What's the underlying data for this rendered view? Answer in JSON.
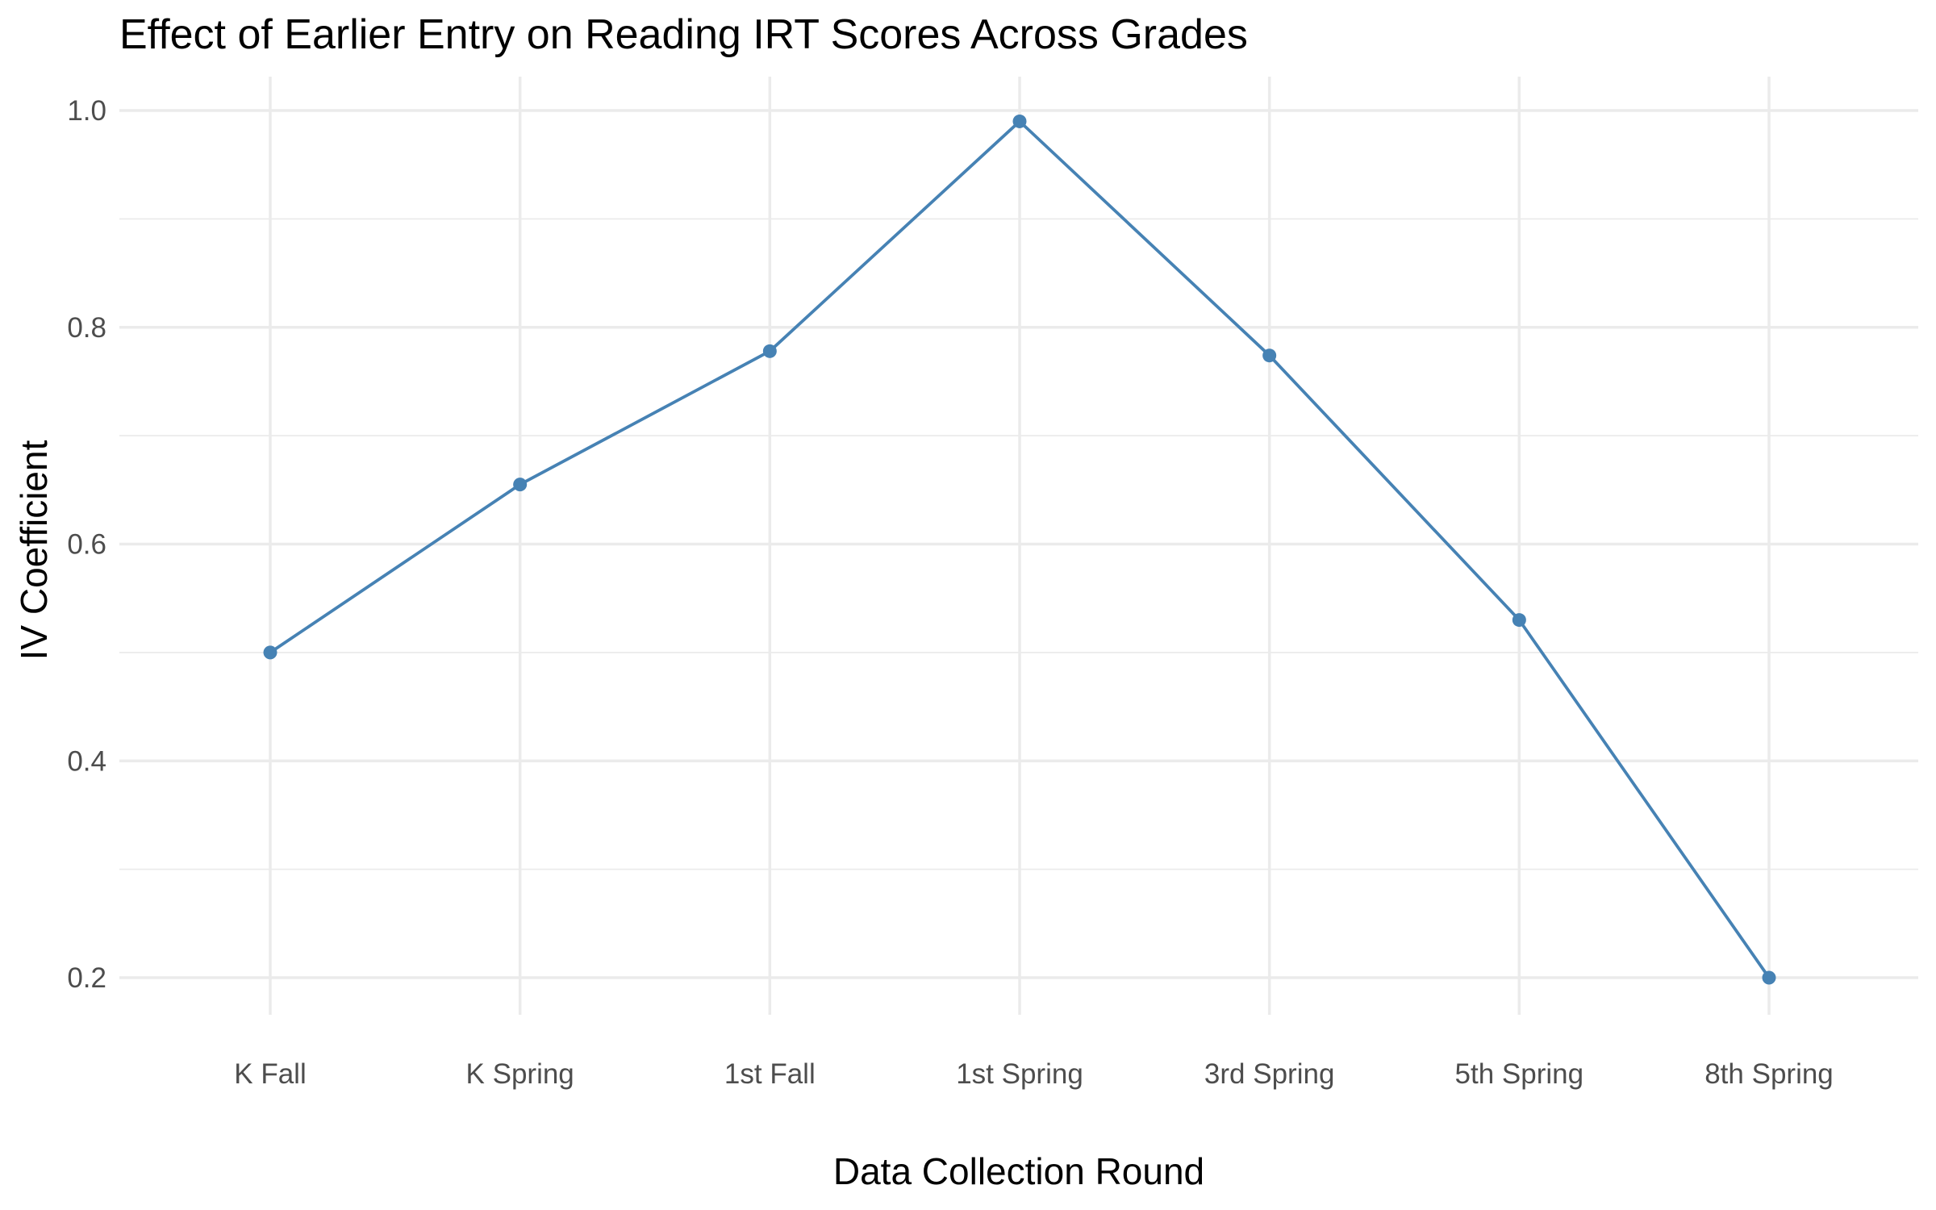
{
  "chart_data": {
    "type": "line",
    "title": "Effect of Earlier Entry on Reading IRT Scores Across Grades",
    "xlabel": "Data Collection Round",
    "ylabel": "IV Coefficient",
    "categories": [
      "K Fall",
      "K Spring",
      "1st Fall",
      "1st Spring",
      "3rd Spring",
      "5th Spring",
      "8th Spring"
    ],
    "values": [
      0.5,
      0.655,
      0.778,
      0.99,
      0.774,
      0.53,
      0.2
    ],
    "ylim": [
      0.17,
      1.03
    ],
    "yticks": [
      0.2,
      0.4,
      0.6,
      0.8,
      1.0
    ],
    "ytick_labels": [
      "0.2",
      "0.4",
      "0.6",
      "0.8",
      "1.0"
    ],
    "grid": true,
    "legend": "none",
    "line_color": "#4682b4"
  }
}
